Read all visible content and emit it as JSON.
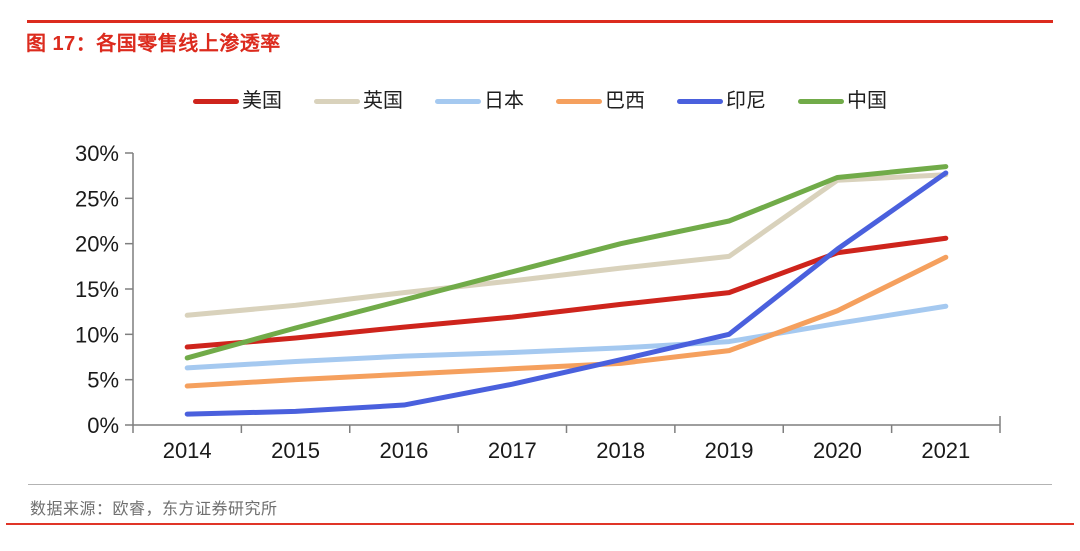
{
  "page": {
    "title": "图 17：各国零售线上渗透率",
    "source": "数据来源：欧睿，东方证券研究所",
    "accent_red": "#dc2b1e"
  },
  "chart_data": {
    "type": "line",
    "title": "各国零售线上渗透率",
    "categories": [
      "2014",
      "2015",
      "2016",
      "2017",
      "2018",
      "2019",
      "2020",
      "2021"
    ],
    "ylim": [
      0,
      30
    ],
    "ytick_step": 5,
    "ytick_labels": [
      "0%",
      "5%",
      "10%",
      "15%",
      "20%",
      "25%",
      "30%"
    ],
    "grid": false,
    "legend_position": "top",
    "series": [
      {
        "name": "美国",
        "color": "#ce241c",
        "values": [
          8.6,
          9.6,
          10.8,
          11.9,
          13.3,
          14.6,
          19.0,
          20.6
        ]
      },
      {
        "name": "英国",
        "color": "#d9d2bc",
        "values": [
          12.1,
          13.2,
          14.6,
          15.9,
          17.3,
          18.6,
          27.0,
          27.6
        ]
      },
      {
        "name": "日本",
        "color": "#a5c9f0",
        "values": [
          6.3,
          7.0,
          7.6,
          8.0,
          8.5,
          9.2,
          11.2,
          13.1
        ]
      },
      {
        "name": "巴西",
        "color": "#f5a05e",
        "values": [
          4.3,
          5.0,
          5.6,
          6.2,
          6.8,
          8.2,
          12.6,
          18.5
        ]
      },
      {
        "name": "印尼",
        "color": "#4a60dd",
        "values": [
          1.2,
          1.5,
          2.2,
          4.5,
          7.2,
          10.0,
          19.4,
          27.8
        ]
      },
      {
        "name": "中国",
        "color": "#71ab49",
        "values": [
          7.4,
          10.7,
          13.8,
          16.9,
          20.0,
          22.5,
          27.3,
          28.5
        ]
      }
    ]
  }
}
